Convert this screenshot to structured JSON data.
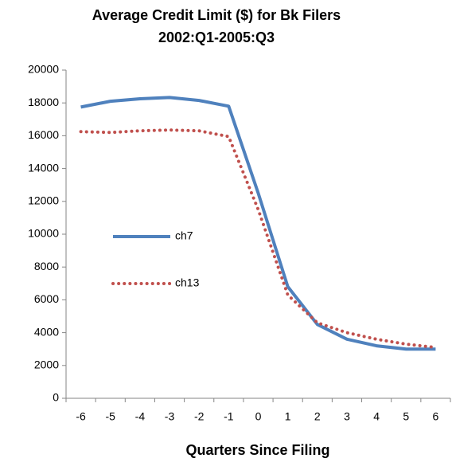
{
  "chart_data": {
    "type": "line",
    "title": "Average Credit Limit ($) for Bk Filers",
    "subtitle": "2002:Q1-2005:Q3",
    "x_label": "Quarters Since Filing",
    "categories": [
      "-6",
      "-5",
      "-4",
      "-3",
      "-2",
      "-1",
      "0",
      "1",
      "2",
      "3",
      "4",
      "5",
      "6"
    ],
    "series": [
      {
        "name": "ch7",
        "color": "#4f81bd",
        "style": "solid",
        "values": [
          17750,
          18100,
          18250,
          18330,
          18150,
          17800,
          12500,
          6800,
          4500,
          3600,
          3200,
          3000,
          3000
        ]
      },
      {
        "name": "ch13",
        "color": "#c0504d",
        "style": "dotted",
        "values": [
          16250,
          16200,
          16300,
          16350,
          16300,
          15950,
          11500,
          6300,
          4600,
          4000,
          3600,
          3300,
          3100
        ]
      }
    ],
    "ylim": [
      0,
      20000
    ],
    "yticks": [
      0,
      2000,
      4000,
      6000,
      8000,
      10000,
      12000,
      14000,
      16000,
      18000,
      20000
    ],
    "grid": false,
    "legend": "left"
  }
}
